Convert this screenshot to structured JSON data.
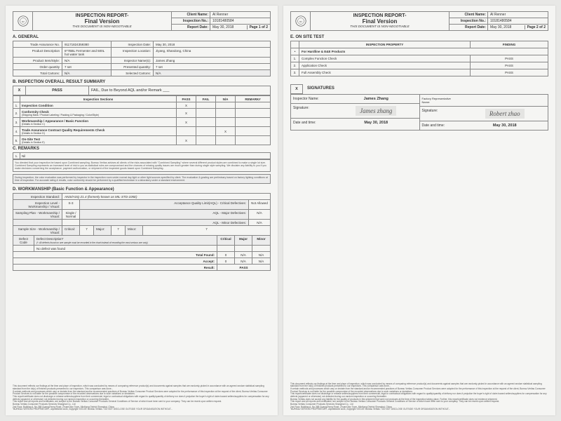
{
  "header": {
    "title1": "INSPECTION REPORT-",
    "title2": "Final Version",
    "title3": "THIS DOCUMENT IS NON-NEGOTIABLE",
    "client_label": "Client Name:",
    "client": "Al Renner",
    "inspno_label": "Inspection No.:",
    "inspno": "10181480584",
    "date_label": "Report Date:",
    "date": "May 30, 2018",
    "page1": "Page 1 of 2",
    "page2": "Page 2 of 2"
  },
  "secA": {
    "title": "A.   GENERAL",
    "rows": [
      {
        "l1": "Trade Assurance No.",
        "v1": "91171824359380",
        "l2": "Inspection Date:",
        "v2": "May 30, 2018"
      },
      {
        "l1": "Product Description",
        "v1": "6*7BBL Fermenter and 500L hot water tank",
        "l2": "Inspection Location:",
        "v2": "Jiyang, Shandong, China"
      },
      {
        "l1": "Product Item/Style:",
        "v1": "N/A",
        "l2": "Inspector Name(s):",
        "v2": "James Zhang"
      },
      {
        "l1": "Order quantity",
        "v1": "7 set",
        "l2": "Presented quantity:",
        "v2": "7 set"
      },
      {
        "l1": "Total Cartons:",
        "v1": "N/A",
        "l2": "Selected Cartons:",
        "v2": "N/A"
      }
    ]
  },
  "secB": {
    "title": "B.   INSPECTION OVERALL RESULT SUMMARY",
    "pass": "PASS",
    "fail": "FAIL, Due to Beyond AQL and/or Remark ___",
    "cols": {
      "sec": "Inspection Sections",
      "pass": "PASS",
      "fail": "FAIL",
      "na": "N/A",
      "rem": "REMARK#"
    },
    "rows": [
      {
        "n": "1.",
        "sec": "Inspection Condition",
        "pass": "X",
        "fail": "",
        "na": "",
        "rem": ""
      },
      {
        "n": "2.",
        "sec": "Conformity Check",
        "sub": "(Shipping Mark / Product Labeling / Packing & Packaging / Color/Style)",
        "pass": "X",
        "fail": "",
        "na": "",
        "rem": ""
      },
      {
        "n": "3.",
        "sec": "Workmanship / Appearance / Basic Function",
        "sub": "(Details in Section C)",
        "pass": "X",
        "fail": "",
        "na": "",
        "rem": ""
      },
      {
        "n": "4.",
        "sec": "Trade Assurance Contract Quality Requirements Check",
        "sub": "(Details in Section D)",
        "pass": "",
        "fail": "",
        "na": "X",
        "rem": ""
      },
      {
        "n": "5.",
        "sec": "On-Site Test",
        "sub": "(Details in Section E)",
        "pass": "X",
        "fail": "",
        "na": "",
        "rem": ""
      }
    ]
  },
  "secC": {
    "title": "C.   REMARKS",
    "rows": [
      {
        "n": "1.",
        "txt": "Nil"
      }
    ],
    "note1": "You directed that your inspection be based upon Combined sampling. Bureau Veritas advises all clients of the risks associated with \"Combined Sampling\" where several different product styles are combined to make a single lot size. Combined Sampling represents an increased level of risk to you as statistical rules are compromised and the chances of missing quality issues are much greater than during single style sampling. We disclaim any liability to you if you make decisions concerning the acceptance, payment authorization, or shipment of the inspected goods based upon Combined Sampling.",
    "note2": "During inspection, the color evaluation was performed by inspector in the inspection room under normal day light or other light sources specified by client. The evaluation & grading are preliminary based on factory lighting conditions at time of inspection. For accurate rating & results, color conformity should be performed by a qualified technician in a laboratory under a standard environment."
  },
  "secD": {
    "title": "D.   WORKMANSHIP (Basic Function & Appearance)",
    "std_label": "Inspection Standard:",
    "std": "ANSI/ASQ Z1.4 (formerly known as MIL-STD-105E)",
    "lvl_label": "Inspection Level - Workmanship / Visual:",
    "lvl": "S-3",
    "aql_label": "Acceptance Quality Limit(AQL) - Critical Defectives:",
    "aql": "Not Allowed",
    "plan_label": "Sampling Plan - Workmanship / Visual:",
    "plan": "Single / Normal",
    "aqlmaj_label": "AQL - Major Defectives:",
    "aqlmaj": "N/A",
    "aqlmin_label": "AQL - Minor Defectives:",
    "aqlmin": "N/A",
    "ss_label": "Sample Size - Workmanship / Visual:",
    "ss_crit": "Critical:",
    "ss_crit_v": "7",
    "ss_maj": "Major:",
    "ss_maj_v": "7",
    "ss_min": "Minor:",
    "ss_min_v": "7",
    "dc_label": "Defect Code",
    "dd_label": "Defect Description*",
    "dd_note": "(*: All defects found on one sample must be recorded in the chart instead of recording the most serious one only)",
    "col_crit": "Critical",
    "col_maj": "Major",
    "col_min": "Minor",
    "none": "No defect was found",
    "tot_found": "Total Found:",
    "tot_accept": "Accept:",
    "tot_result": "Result:",
    "v0": "0",
    "vna": "N/A",
    "vpass": "PASS"
  },
  "secE": {
    "title": "E.   ON SITE TEST",
    "col_prop": "INSPECTION PROPERTY",
    "col_find": "FINDING",
    "sub": "For Hardline & E&E Products",
    "rows": [
      {
        "n": "1.",
        "prop": "Complex Function Check",
        "find": "PASS"
      },
      {
        "n": "2.",
        "prop": "Application Check",
        "find": "PASS"
      },
      {
        "n": "3.",
        "prop": "Full Assembly Check",
        "find": "PASS"
      }
    ]
  },
  "sig": {
    "title": "SIGNATURES",
    "insp_label": "Inspector Name:",
    "insp": "James Zhang",
    "rep_label": "Factory Representative Name:",
    "sig_label": "Signature:",
    "sig1": "James zhang",
    "sig2": "Robert zhao",
    "dt_label": "Date and time:",
    "dt": "May 30, 2018"
  },
  "footer": {
    "t1": "This document reflects our findings at the time and place of inspection, which was conducted by means of comparing reference product(s) and documents against samples that are randomly-picked in accordance with an agreed random statistical sampling standard from the lot(s) of finished products presented to our inspectors. This comparison was done...",
    "t2": "If certain methods and processes which vary or deviate from the standard and/or recommended practices of Bureau Veritas Consumer Product Services were adopted for the performance of this inspection at the request of the client, Bureau Veritas Consumer Product Services is not liable for the possible compromise of the recorded observations due to such variations or deviations.",
    "t3": "This report/certificate does not discharge or release sellers/suppliers from their commercial, legal or contractual obligations with regard to quality/quantity of delivery nor does it prejudice the buyer's right of claim toward sellers/suppliers for compensation for any defects (apparent or otherwise) not detected during our random inspection or occurring thereafter.",
    "t4": "Bureau Veritas does not accept any liability for the quality of products in this shipment that were not produces at the time of the inspection taking place. Further, this report/certificate does not evidence shipment.",
    "t5": "This report and all reports and certificates, are subject to the Bureau Veritas Consumer Products General Conditions of Service of which have been sent to your company. They can be resent upon written request.",
    "addr1": "Bureau Veritas Consumer Products Services Shanghai Co., Ltd",
    "addr2": "2nd Floor, Building A, No.368 GuangZhong Road, ZhuanQiao Town, MinHang District,Shanghai, China",
    "addr3": "\"BUREAU VERITAS PROPRIETARY- unpublished work, copyright ©2013© Bureau Veritas - DO NOT DISCLOSE OUTSIDE YOUR ORGANISATION WITHOUT..."
  }
}
